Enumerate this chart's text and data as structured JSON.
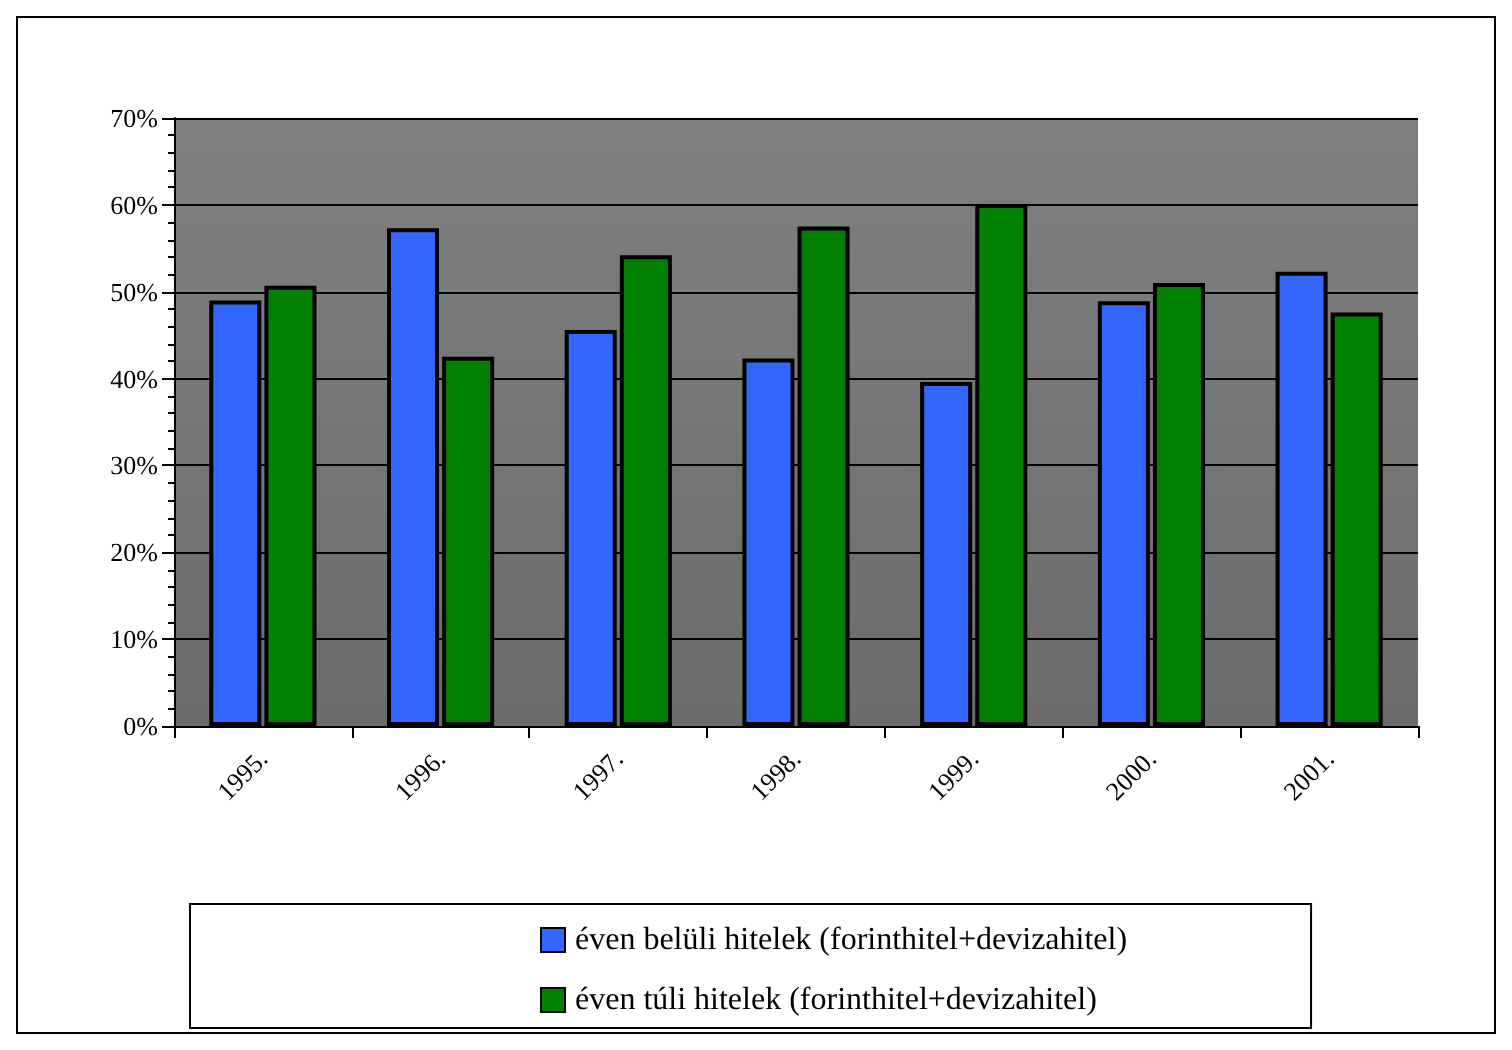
{
  "chart_data": {
    "type": "bar",
    "categories": [
      "1995.",
      "1996.",
      "1997.",
      "1998.",
      "1999.",
      "2000.",
      "2001."
    ],
    "series": [
      {
        "name": "éven belüli hitelek (forinthitel+devizahitel)",
        "color": "#3366ff",
        "values": [
          49.0,
          57.3,
          45.6,
          42.3,
          39.6,
          48.9,
          52.3
        ]
      },
      {
        "name": "éven túli hitelek (forinthitel+devizahitel)",
        "color": "#008000",
        "values": [
          50.7,
          42.5,
          54.2,
          57.5,
          60.1,
          51.0,
          47.6
        ]
      }
    ],
    "ylim": [
      0,
      70
    ],
    "yticks": [
      {
        "value": 0,
        "label": "0%"
      },
      {
        "value": 10,
        "label": "10%"
      },
      {
        "value": 20,
        "label": "20%"
      },
      {
        "value": 30,
        "label": "30%"
      },
      {
        "value": 40,
        "label": "40%"
      },
      {
        "value": 50,
        "label": "50%"
      },
      {
        "value": 60,
        "label": "60%"
      },
      {
        "value": 70,
        "label": "70%"
      }
    ],
    "grid": "y",
    "legend": "bottom"
  }
}
